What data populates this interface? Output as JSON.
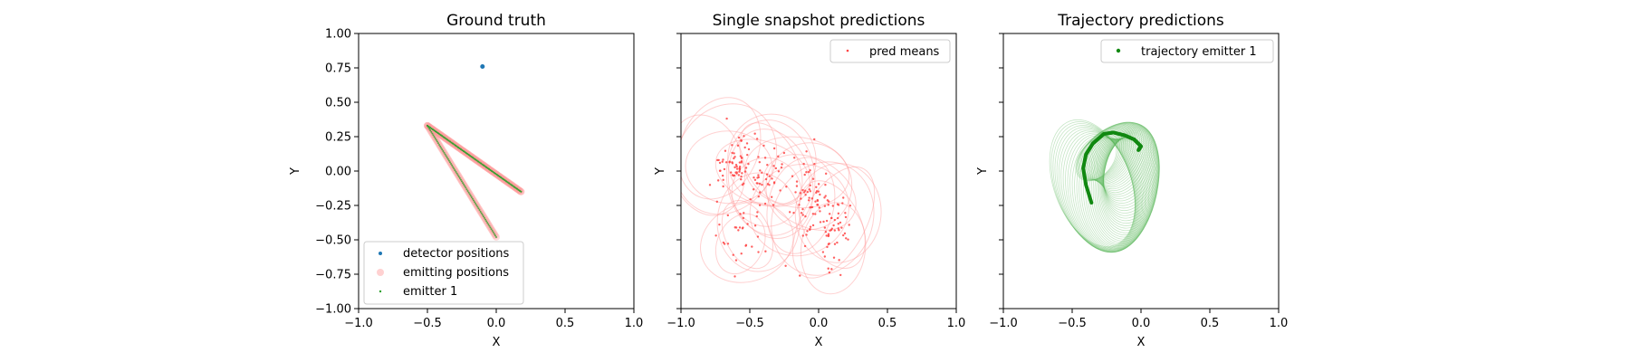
{
  "chart_data": [
    {
      "type": "scatter",
      "title": "Ground truth",
      "xlabel": "X",
      "ylabel": "Y",
      "xlim": [
        -1.0,
        1.0
      ],
      "ylim": [
        -1.0,
        1.0
      ],
      "xticks": [
        "−1.0",
        "−0.5",
        "0.0",
        "0.5",
        "1.0"
      ],
      "yticks": [
        "−1.00",
        "−0.75",
        "−0.50",
        "−0.25",
        "0.00",
        "0.25",
        "0.50",
        "0.75",
        "1.00"
      ],
      "legend_position": "lower-left",
      "legend": [
        "detector positions",
        "emitting positions",
        "emitter 1"
      ],
      "series": [
        {
          "name": "detector positions",
          "color": "#1f77b4",
          "x": [
            -0.1
          ],
          "y": [
            0.76
          ]
        },
        {
          "name": "emitting positions",
          "color": "#ff9a9a",
          "path_x": [
            -0.5,
            0.18,
            -0.5,
            0.0
          ],
          "path_y": [
            0.33,
            -0.15,
            0.33,
            -0.48
          ]
        },
        {
          "name": "emitter 1",
          "color": "#2ca02c",
          "path_x": [
            -0.5,
            0.18,
            -0.5,
            0.0
          ],
          "path_y": [
            0.33,
            -0.15,
            0.33,
            -0.48
          ]
        }
      ]
    },
    {
      "type": "scatter",
      "title": "Single snapshot predictions",
      "xlabel": "X",
      "ylabel": "Y",
      "xlim": [
        -1.0,
        1.0
      ],
      "ylim": [
        -1.0,
        1.0
      ],
      "xticks": [
        "−1.0",
        "−0.5",
        "0.0",
        "0.5",
        "1.0"
      ],
      "legend_position": "upper-right",
      "legend": [
        "pred means"
      ],
      "series": [
        {
          "name": "pred means",
          "color": "#ff4444",
          "clusters": [
            {
              "cx": -0.62,
              "cy": 0.05,
              "sx": 0.09,
              "sy": 0.1,
              "n": 70
            },
            {
              "cx": -0.35,
              "cy": -0.05,
              "sx": 0.1,
              "sy": 0.12,
              "n": 40
            },
            {
              "cx": -0.05,
              "cy": -0.2,
              "sx": 0.07,
              "sy": 0.14,
              "n": 70
            },
            {
              "cx": 0.12,
              "cy": -0.42,
              "sx": 0.06,
              "sy": 0.14,
              "n": 50
            },
            {
              "cx": -0.55,
              "cy": -0.45,
              "sx": 0.1,
              "sy": 0.12,
              "n": 30
            }
          ]
        }
      ],
      "uncertainty_ellipses": {
        "color": "#ff9a9a",
        "count": 24
      }
    },
    {
      "type": "line",
      "title": "Trajectory predictions",
      "xlabel": "X",
      "ylabel": "Y",
      "xlim": [
        -1.0,
        1.0
      ],
      "ylim": [
        -1.0,
        1.0
      ],
      "xticks": [
        "−1.0",
        "−0.5",
        "0.0",
        "0.5",
        "1.0"
      ],
      "legend_position": "upper-right",
      "legend": [
        "trajectory emitter 1"
      ],
      "series": [
        {
          "name": "trajectory emitter 1",
          "color": "#118811",
          "path_x": [
            -0.36,
            -0.4,
            -0.42,
            -0.4,
            -0.35,
            -0.27,
            -0.2,
            -0.12,
            -0.05,
            0.0,
            -0.02
          ],
          "path_y": [
            -0.23,
            -0.1,
            0.02,
            0.12,
            0.2,
            0.27,
            0.28,
            0.26,
            0.23,
            0.18,
            0.15
          ]
        }
      ],
      "uncertainty_ellipses": {
        "color": "#5cb85c",
        "count": 60
      }
    }
  ]
}
